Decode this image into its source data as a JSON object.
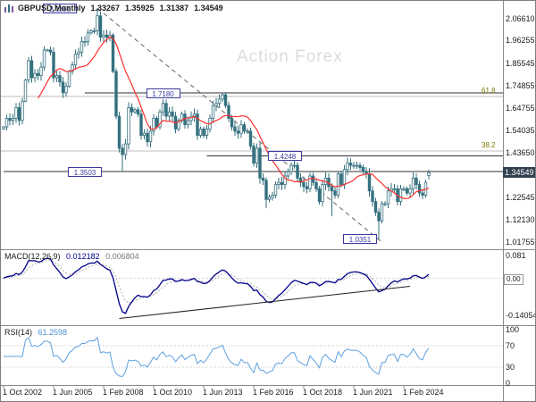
{
  "window": {
    "symbol_title": "GBPUSD,Monthly",
    "open": "1.33267",
    "high": "1.35925",
    "low": "1.31387",
    "close": "1.34549"
  },
  "watermark": "Action Forex",
  "chart_data": {
    "type": "candlestick",
    "symbol": "GBPUSD",
    "timeframe": "Monthly",
    "x_start": "Oct 2002",
    "x_step_months": 2,
    "closes": [
      1.56,
      1.6,
      1.59,
      1.6,
      1.65,
      1.59,
      1.68,
      1.78,
      1.87,
      1.79,
      1.81,
      1.8,
      1.84,
      1.92,
      1.92,
      1.91,
      1.79,
      1.8,
      1.77,
      1.72,
      1.75,
      1.82,
      1.85,
      1.9,
      1.91,
      1.96,
      1.96,
      2.0,
      2.01,
      2.01,
      2.08,
      1.98,
      1.99,
      1.98,
      1.99,
      1.82,
      1.61,
      1.46,
      1.43,
      1.48,
      1.65,
      1.63,
      1.64,
      1.62,
      1.52,
      1.53,
      1.49,
      1.54,
      1.6,
      1.56,
      1.63,
      1.67,
      1.61,
      1.63,
      1.61,
      1.55,
      1.59,
      1.62,
      1.57,
      1.59,
      1.61,
      1.62,
      1.52,
      1.55,
      1.52,
      1.55,
      1.6,
      1.66,
      1.67,
      1.69,
      1.71,
      1.66,
      1.6,
      1.56,
      1.54,
      1.53,
      1.57,
      1.54,
      1.54,
      1.47,
      1.39,
      1.46,
      1.32,
      1.31,
      1.22,
      1.23,
      1.24,
      1.29,
      1.3,
      1.29,
      1.33,
      1.35,
      1.38,
      1.38,
      1.32,
      1.3,
      1.28,
      1.27,
      1.33,
      1.3,
      1.27,
      1.21,
      1.29,
      1.32,
      1.28,
      1.26,
      1.24,
      1.34,
      1.29,
      1.36,
      1.39,
      1.38,
      1.38,
      1.38,
      1.37,
      1.35,
      1.34,
      1.26,
      1.21,
      1.16,
      1.12,
      1.2,
      1.2,
      1.26,
      1.27,
      1.27,
      1.21,
      1.27,
      1.27,
      1.25,
      1.27,
      1.32,
      1.29,
      1.25,
      1.24,
      1.3,
      1.345
    ],
    "overrides": {
      "30": {
        "h": 2.1161
      },
      "38": {
        "l": 1.3503
      },
      "70": {
        "h": 1.718
      },
      "84": {
        "l": 1.18
      },
      "93": {
        "h": 1.437
      },
      "105": {
        "l": 1.141
      },
      "120": {
        "l": 1.0351
      },
      "136": {
        "o": 1.33267,
        "h": 1.35925,
        "l": 1.31387,
        "c": 1.34549
      }
    },
    "ma_window": 12,
    "current_price": {
      "text": "1.34549",
      "value": 1.34549
    },
    "price_axis_labels": [
      {
        "text": "2.06610",
        "value": 2.0661
      },
      {
        "text": "1.96255",
        "value": 1.96255
      },
      {
        "text": "1.85545",
        "value": 1.85545
      },
      {
        "text": "1.74855",
        "value": 1.74855
      },
      {
        "text": "1.64755",
        "value": 1.64755
      },
      {
        "text": "1.54035",
        "value": 1.54035
      },
      {
        "text": "1.43650",
        "value": 1.4365
      },
      {
        "text": "1.22545",
        "value": 1.22545
      },
      {
        "text": "1.12130",
        "value": 1.1213
      },
      {
        "text": "1.01755",
        "value": 1.01755
      }
    ],
    "levels": [
      {
        "text": "2.1161",
        "value": 2.1161,
        "box_i": 18,
        "line": false
      },
      {
        "text": "1.7180",
        "value": 1.718,
        "box_i": 51,
        "line": true,
        "line_from_i": 26
      },
      {
        "text": "1.4248",
        "value": 1.4248,
        "box_i": 90,
        "line": true,
        "line_from_i": 65
      },
      {
        "text": "1.3503",
        "value": 1.3503,
        "box_i": 26,
        "line": true,
        "line_from_i": 0
      },
      {
        "text": "1.0351",
        "value": 1.0351,
        "box_i": 114,
        "line": false
      }
    ],
    "fib_levels": [
      {
        "text": "61.8",
        "value": 1.703
      },
      {
        "text": "38.2",
        "value": 1.448
      }
    ],
    "trendline": {
      "from_i": 30,
      "from_p": 2.116,
      "to_i": 121,
      "to_p": 1.02
    },
    "time_axis_labels": [
      {
        "text": "1 Oct 2002",
        "i": 0
      },
      {
        "text": "1 Jun 2005",
        "i": 16
      },
      {
        "text": "1 Feb 2008",
        "i": 32
      },
      {
        "text": "1 Oct 2010",
        "i": 48
      },
      {
        "text": "1 Jun 2013",
        "i": 64
      },
      {
        "text": "1 Feb 2016",
        "i": 80
      },
      {
        "text": "1 Oct 2018",
        "i": 96
      },
      {
        "text": "1 Jun 2021",
        "i": 112
      },
      {
        "text": "1 Feb 2024",
        "i": 128
      }
    ],
    "macd": {
      "title": "MACD(12,26,9)",
      "value_main": "0.012182",
      "value_signal": "0.006804",
      "fast": 6,
      "slow": 13,
      "signal": 5,
      "axis_labels": [
        {
          "text": "0.081",
          "value": 0.081,
          "boxed": false
        },
        {
          "text": "0.00",
          "value": 0,
          "boxed": true
        },
        {
          "text": "-0.14054",
          "value": -0.14054,
          "boxed": false
        }
      ],
      "trendline": {
        "from_i": 37,
        "from_v": -0.15,
        "to_i": 130,
        "to_v": -0.03
      }
    },
    "rsi": {
      "title": "RSI(14)",
      "value": "61.2598",
      "period": 7,
      "axis_labels": [
        {
          "text": "100",
          "value": 100
        },
        {
          "text": "70",
          "value": 70
        },
        {
          "text": "30",
          "value": 30
        },
        {
          "text": "0",
          "value": 0
        }
      ],
      "dotted_levels": [
        70,
        30
      ]
    }
  },
  "colors": {
    "candle": "#35707f",
    "candle_up_fill": "#ffffff",
    "ma": "#ff2e2e",
    "macd_main": "#00008b",
    "macd_signal": "#b0b0b0",
    "rsi": "#5ea0e0",
    "level_line": "#333333",
    "fib_line": "#bcbcbc",
    "trendline": "#666666",
    "macd_trendline": "#222222",
    "separator": "#8a8a8a",
    "dotted": "#c0c0c0",
    "price_box_bg": "#31414f",
    "watermark": "#dcdcdc"
  }
}
